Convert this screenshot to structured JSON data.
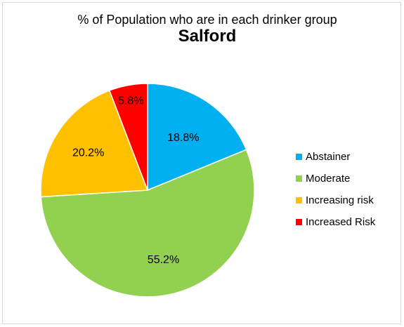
{
  "chart_data": {
    "type": "pie",
    "title": "% of Population who are in each drinker group",
    "subtitle": "Salford",
    "categories": [
      "Abstainer",
      "Moderate",
      "Increasing risk",
      "Increased Risk"
    ],
    "values": [
      18.8,
      55.2,
      20.2,
      5.8
    ],
    "value_labels": [
      "18.8%",
      "55.2%",
      "20.2%",
      "5.8%"
    ],
    "colors": [
      "#00b0f0",
      "#92d050",
      "#ffc000",
      "#ff0000"
    ],
    "legend_position": "right",
    "start_angle": "12 o'clock, clockwise"
  }
}
